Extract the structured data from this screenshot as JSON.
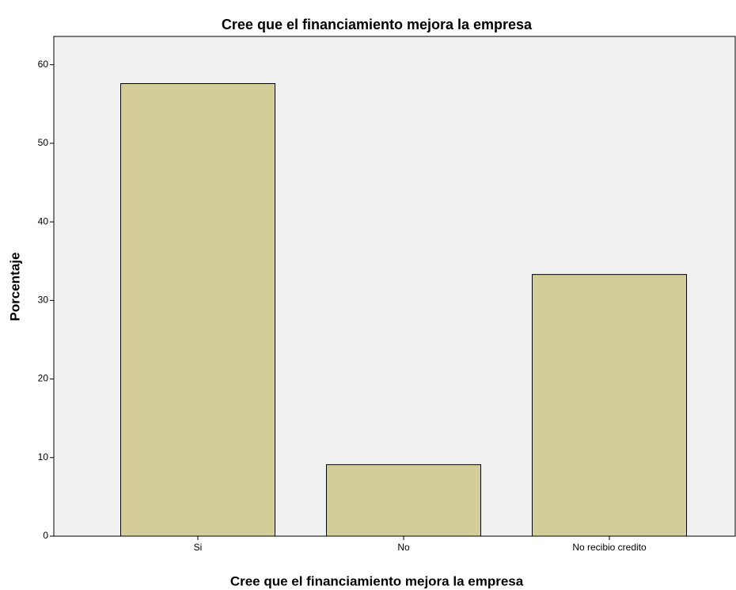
{
  "chart_data": {
    "type": "bar",
    "title": "Cree que el financiamiento mejora la empresa",
    "x_label": "Cree que el financiamiento mejora la empresa",
    "y_label": "Porcentaje",
    "categories": [
      "Si",
      "No",
      "No recibio credito"
    ],
    "values": [
      57.6,
      9.1,
      33.3
    ],
    "color": "#d3ce97",
    "ylim": [
      0,
      63.6
    ],
    "yticks": [
      0,
      10,
      20,
      30,
      40,
      50,
      60
    ],
    "grid": false
  }
}
